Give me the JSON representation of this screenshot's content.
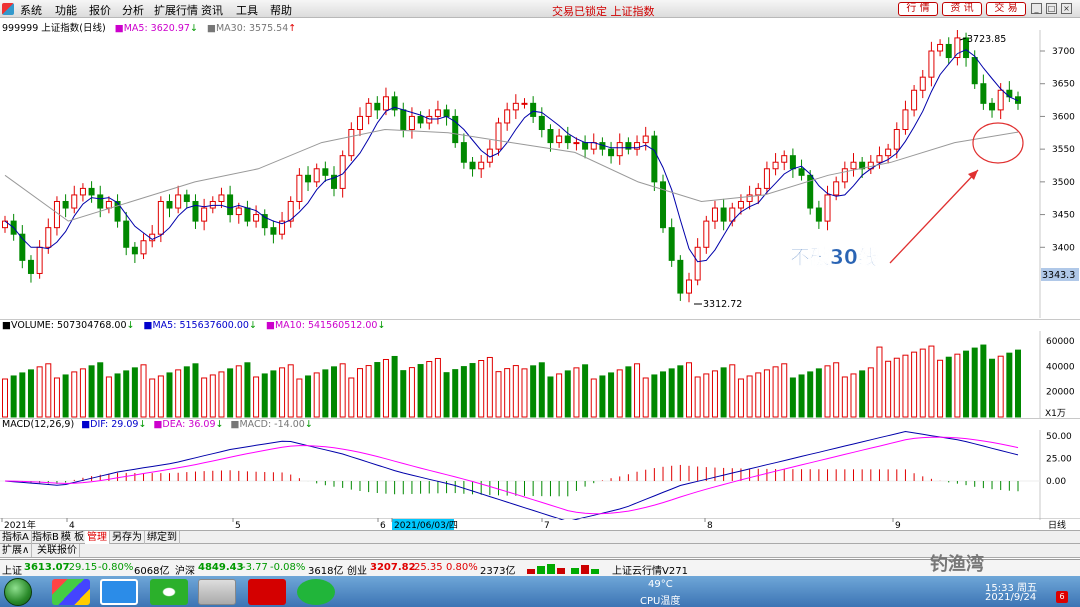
{
  "menubar": {
    "items": [
      "系统",
      "功能",
      "报价",
      "分析",
      "扩展行情",
      "资讯",
      "工具",
      "帮助"
    ],
    "lock_status": "交易已锁定 上证指数",
    "buttons": [
      "行 情",
      "资 讯",
      "交 易"
    ]
  },
  "price_panel": {
    "code_name": "999999 上证指数(日线)",
    "ma5_label": "MA5: 3620.97",
    "ma5_arrow": "↓",
    "ma30_label": "MA30: 3575.54",
    "ma30_arrow": "↑",
    "y_ticks": [
      "3700",
      "3650",
      "3600",
      "3550",
      "3500",
      "3450",
      "3400"
    ],
    "high_label": "3723.85",
    "low_label": "3312.72",
    "current_label": "3343.3",
    "annotation": "不破30线"
  },
  "volume_panel": {
    "vol_label": "VOLUME: 507304768.00",
    "vol_arrow": "↓",
    "ma5_label": "MA5: 515637600.00",
    "ma5_arrow": "↓",
    "ma10_label": "MA10: 541560512.00",
    "ma10_arrow": "↓",
    "y_ticks": [
      "60000",
      "40000",
      "20000"
    ],
    "unit": "X1万"
  },
  "macd_panel": {
    "title": "MACD(12,26,9)",
    "dif_label": "DIF: 29.09",
    "dif_arrow": "↓",
    "dea_label": "DEA: 36.09",
    "dea_arrow": "↓",
    "macd_label": "MACD: -14.00",
    "macd_arrow": "↓",
    "y_ticks": [
      "50.00",
      "25.00",
      "0.00"
    ]
  },
  "time_axis": {
    "labels": [
      "2021年",
      "4",
      "5",
      "6",
      "2021/06/03/四",
      "7",
      "8",
      "9"
    ],
    "period": "日线"
  },
  "tabs_row1": [
    "指标A",
    "指标B",
    "模 板",
    "管理",
    "另存为",
    "绑定到"
  ],
  "tabs_row2": [
    "扩展∧",
    "关联报价"
  ],
  "statusbar": {
    "sh_label": "上证",
    "sh_value": "3613.07",
    "sh_change": "-29.15",
    "sh_pct": "-0.80%",
    "sh_amount": "6068亿",
    "hs_label": "沪深",
    "hs_value": "4849.43",
    "hs_change": "-3.77",
    "hs_pct": "-0.08%",
    "hs_amount": "3618亿",
    "cy_label": "创业",
    "cy_value": "3207.82",
    "cy_change": "25.35",
    "cy_pct": "0.80%",
    "cy_amount": "2373亿",
    "cloud": "上证云行情V271"
  },
  "taskbar": {
    "temp": "49°C",
    "temp_label": "CPU温度",
    "time": "15:33 周五",
    "date": "2021/9/24",
    "watermark": "钓渔湾",
    "badge": "6"
  },
  "colors": {
    "up": "#e00000",
    "down": "#008800",
    "ma5": "#0000aa",
    "ma30": "#999999",
    "dea": "#ff00ff",
    "annotation": "#2a64b4"
  },
  "chart_data": {
    "type": "candlestick",
    "series_price": [
      3440,
      3420,
      3380,
      3360,
      3400,
      3430,
      3470,
      3460,
      3480,
      3490,
      3480,
      3460,
      3470,
      3440,
      3400,
      3390,
      3410,
      3420,
      3470,
      3460,
      3480,
      3470,
      3440,
      3460,
      3470,
      3480,
      3450,
      3460,
      3440,
      3450,
      3430,
      3420,
      3440,
      3470,
      3510,
      3500,
      3520,
      3510,
      3490,
      3540,
      3580,
      3600,
      3620,
      3610,
      3630,
      3610,
      3580,
      3600,
      3590,
      3600,
      3610,
      3600,
      3560,
      3530,
      3520,
      3530,
      3550,
      3590,
      3610,
      3620,
      3620,
      3600,
      3580,
      3560,
      3570,
      3560,
      3560,
      3550,
      3560,
      3550,
      3540,
      3560,
      3550,
      3560,
      3570,
      3500,
      3430,
      3380,
      3330,
      3350,
      3400,
      3440,
      3460,
      3440,
      3460,
      3470,
      3480,
      3490,
      3520,
      3530,
      3540,
      3520,
      3510,
      3460,
      3440,
      3480,
      3500,
      3520,
      3530,
      3520,
      3530,
      3540,
      3550,
      3580,
      3610,
      3640,
      3660,
      3700,
      3710,
      3690,
      3720,
      3690,
      3650,
      3620,
      3610,
      3640,
      3630,
      3620
    ],
    "ma30_line": [
      3510,
      3440,
      3470,
      3500,
      3520,
      3560,
      3580,
      3575,
      3560,
      3545,
      3500,
      3470,
      3480,
      3510,
      3530,
      3560,
      3576
    ],
    "macd_line": [
      0,
      -5,
      10,
      20,
      35,
      45,
      30,
      10,
      -5,
      -25,
      -45,
      -30,
      -5,
      10,
      25,
      40,
      55,
      45,
      29
    ]
  }
}
